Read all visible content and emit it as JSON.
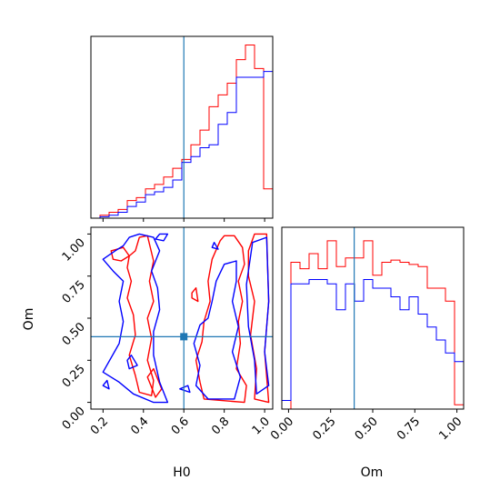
{
  "chart_data": {
    "type": "corner",
    "parameters": [
      "H0",
      "Om"
    ],
    "truths": {
      "H0": 0.6,
      "Om": 0.39
    },
    "colors": {
      "series_a": "#ff0000",
      "series_b": "#0000ff",
      "truth": "#1f77b4"
    },
    "axes": {
      "H0": {
        "label": "H0",
        "range": [
          0.14,
          1.04
        ],
        "ticks": [
          "0.2",
          "0.4",
          "0.6",
          "0.8",
          "1.0"
        ]
      },
      "Om": {
        "label": "Om",
        "range": [
          -0.04,
          1.04
        ],
        "ticks": [
          "0.00",
          "0.25",
          "0.50",
          "0.75",
          "1.00"
        ]
      }
    },
    "hist_H0": {
      "bin_edges": [
        0.14,
        0.185,
        0.23,
        0.275,
        0.32,
        0.365,
        0.41,
        0.455,
        0.5,
        0.545,
        0.59,
        0.635,
        0.68,
        0.725,
        0.77,
        0.815,
        0.86,
        0.905,
        0.95,
        0.995,
        1.04
      ],
      "series": [
        {
          "color": "red",
          "values": [
            0,
            2,
            4,
            6,
            12,
            14,
            20,
            23,
            28,
            34,
            40,
            50,
            60,
            76,
            84,
            92,
            108,
            118,
            102,
            20
          ]
        },
        {
          "color": "blue",
          "values": [
            0,
            1,
            2,
            4,
            8,
            11,
            16,
            18,
            21,
            26,
            38,
            42,
            48,
            50,
            64,
            72,
            96,
            96,
            96,
            100
          ]
        }
      ]
    },
    "hist_Om": {
      "bin_edges": [
        -0.04,
        0.014,
        0.068,
        0.122,
        0.176,
        0.23,
        0.284,
        0.338,
        0.392,
        0.446,
        0.5,
        0.554,
        0.608,
        0.662,
        0.716,
        0.77,
        0.824,
        0.878,
        0.932,
        0.986,
        1.04
      ],
      "series": [
        {
          "color": "red",
          "values": [
            0,
            68,
            65,
            72,
            65,
            78,
            66,
            70,
            70,
            78,
            62,
            68,
            69,
            68,
            67,
            66,
            56,
            56,
            50,
            2
          ]
        },
        {
          "color": "blue",
          "values": [
            4,
            58,
            58,
            60,
            60,
            58,
            46,
            58,
            50,
            60,
            56,
            56,
            52,
            46,
            52,
            44,
            38,
            32,
            26,
            22
          ]
        }
      ]
    },
    "contours_2d": [
      {
        "color": "red",
        "paths": [
          [
            [
              0.33,
              0.87
            ],
            [
              0.32,
              0.8
            ],
            [
              0.34,
              0.72
            ],
            [
              0.32,
              0.62
            ],
            [
              0.35,
              0.52
            ],
            [
              0.36,
              0.4
            ],
            [
              0.33,
              0.28
            ],
            [
              0.36,
              0.16
            ],
            [
              0.38,
              0.06
            ],
            [
              0.44,
              0.04
            ],
            [
              0.45,
              0.13
            ],
            [
              0.42,
              0.25
            ],
            [
              0.44,
              0.38
            ],
            [
              0.42,
              0.5
            ],
            [
              0.45,
              0.6
            ],
            [
              0.43,
              0.72
            ],
            [
              0.45,
              0.84
            ],
            [
              0.42,
              0.99
            ],
            [
              0.38,
              0.98
            ],
            [
              0.36,
              0.9
            ],
            [
              0.33,
              0.87
            ]
          ],
          [
            [
              0.24,
              0.9
            ],
            [
              0.3,
              0.92
            ],
            [
              0.33,
              0.87
            ],
            [
              0.29,
              0.84
            ],
            [
              0.25,
              0.85
            ],
            [
              0.24,
              0.9
            ]
          ],
          [
            [
              0.78,
              0.96
            ],
            [
              0.74,
              0.85
            ],
            [
              0.72,
              0.72
            ],
            [
              0.73,
              0.6
            ],
            [
              0.7,
              0.48
            ],
            [
              0.69,
              0.36
            ],
            [
              0.66,
              0.25
            ],
            [
              0.68,
              0.12
            ],
            [
              0.7,
              0.02
            ],
            [
              0.9,
              0.0
            ],
            [
              0.91,
              0.1
            ],
            [
              0.86,
              0.2
            ],
            [
              0.88,
              0.35
            ],
            [
              0.87,
              0.48
            ],
            [
              0.89,
              0.6
            ],
            [
              0.87,
              0.72
            ],
            [
              0.9,
              0.82
            ],
            [
              0.89,
              0.92
            ],
            [
              0.85,
              0.99
            ],
            [
              0.8,
              0.99
            ],
            [
              0.78,
              0.96
            ]
          ],
          [
            [
              0.92,
              0.9
            ],
            [
              0.95,
              1.0
            ],
            [
              1.01,
              1.0
            ],
            [
              1.02,
              0.6
            ],
            [
              1.0,
              0.3
            ],
            [
              1.02,
              0.0
            ],
            [
              0.95,
              0.02
            ],
            [
              0.96,
              0.2
            ],
            [
              0.93,
              0.4
            ],
            [
              0.95,
              0.6
            ],
            [
              0.92,
              0.75
            ],
            [
              0.92,
              0.9
            ]
          ],
          [
            [
              0.42,
              0.15
            ],
            [
              0.45,
              0.2
            ],
            [
              0.49,
              0.08
            ],
            [
              0.46,
              0.03
            ],
            [
              0.42,
              0.15
            ]
          ],
          [
            [
              0.64,
              0.65
            ],
            [
              0.66,
              0.68
            ],
            [
              0.67,
              0.6
            ],
            [
              0.64,
              0.62
            ],
            [
              0.64,
              0.65
            ]
          ]
        ]
      },
      {
        "color": "blue",
        "paths": [
          [
            [
              0.26,
              0.9
            ],
            [
              0.2,
              0.85
            ],
            [
              0.25,
              0.78
            ],
            [
              0.3,
              0.72
            ],
            [
              0.28,
              0.6
            ],
            [
              0.3,
              0.48
            ],
            [
              0.28,
              0.35
            ],
            [
              0.2,
              0.18
            ],
            [
              0.28,
              0.12
            ],
            [
              0.35,
              0.05
            ],
            [
              0.45,
              0.0
            ],
            [
              0.52,
              0.0
            ],
            [
              0.48,
              0.12
            ],
            [
              0.45,
              0.28
            ],
            [
              0.45,
              0.42
            ],
            [
              0.48,
              0.55
            ],
            [
              0.47,
              0.68
            ],
            [
              0.44,
              0.78
            ],
            [
              0.48,
              0.9
            ],
            [
              0.45,
              0.98
            ],
            [
              0.38,
              1.0
            ],
            [
              0.33,
              0.98
            ],
            [
              0.3,
              0.93
            ],
            [
              0.26,
              0.9
            ]
          ],
          [
            [
              0.46,
              0.97
            ],
            [
              0.48,
              1.0
            ],
            [
              0.52,
              1.0
            ],
            [
              0.5,
              0.96
            ],
            [
              0.46,
              0.97
            ]
          ],
          [
            [
              0.68,
              0.46
            ],
            [
              0.65,
              0.35
            ],
            [
              0.68,
              0.22
            ],
            [
              0.66,
              0.1
            ],
            [
              0.72,
              0.02
            ],
            [
              0.85,
              0.02
            ],
            [
              0.88,
              0.15
            ],
            [
              0.84,
              0.3
            ],
            [
              0.87,
              0.45
            ],
            [
              0.84,
              0.6
            ],
            [
              0.86,
              0.72
            ],
            [
              0.86,
              0.84
            ],
            [
              0.8,
              0.82
            ],
            [
              0.76,
              0.72
            ],
            [
              0.74,
              0.6
            ],
            [
              0.72,
              0.5
            ],
            [
              0.68,
              0.46
            ]
          ],
          [
            [
              0.91,
              0.7
            ],
            [
              0.94,
              0.95
            ],
            [
              1.01,
              0.98
            ],
            [
              1.02,
              0.6
            ],
            [
              1.0,
              0.3
            ],
            [
              1.02,
              0.1
            ],
            [
              0.96,
              0.05
            ],
            [
              0.95,
              0.25
            ],
            [
              0.92,
              0.45
            ],
            [
              0.91,
              0.7
            ]
          ],
          [
            [
              0.2,
              0.1
            ],
            [
              0.22,
              0.13
            ],
            [
              0.23,
              0.08
            ],
            [
              0.2,
              0.1
            ]
          ],
          [
            [
              0.32,
              0.25
            ],
            [
              0.34,
              0.28
            ],
            [
              0.37,
              0.22
            ],
            [
              0.33,
              0.2
            ],
            [
              0.32,
              0.25
            ]
          ],
          [
            [
              0.58,
              0.08
            ],
            [
              0.62,
              0.1
            ],
            [
              0.63,
              0.06
            ],
            [
              0.58,
              0.08
            ]
          ],
          [
            [
              0.74,
              0.92
            ],
            [
              0.75,
              0.95
            ],
            [
              0.77,
              0.91
            ],
            [
              0.74,
              0.92
            ]
          ]
        ]
      }
    ]
  }
}
